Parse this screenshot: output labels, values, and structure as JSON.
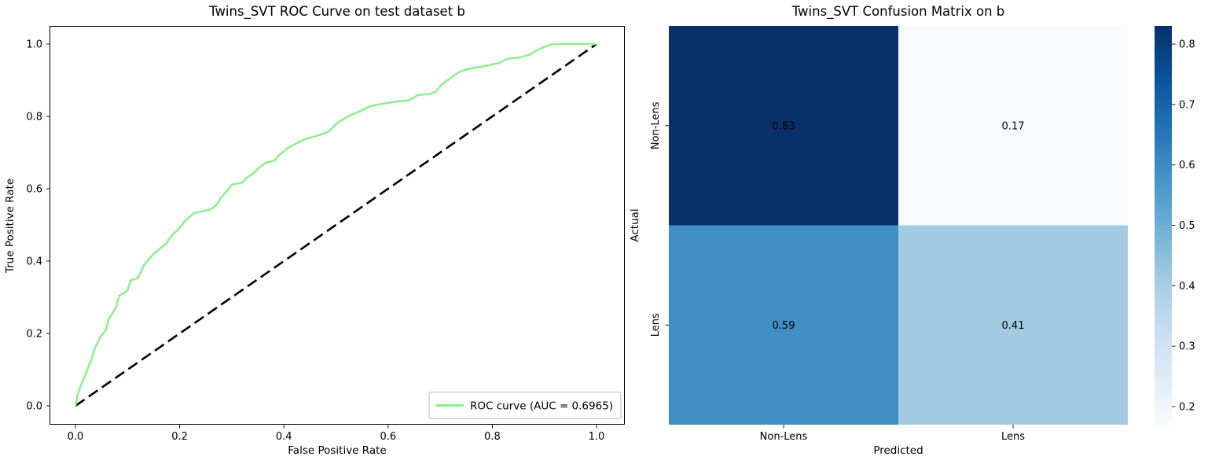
{
  "figure_background": "#ffffff",
  "chart_data": [
    {
      "type": "line",
      "title": "Twins_SVT ROC Curve on test dataset b",
      "xlabel": "False Positive Rate",
      "ylabel": "True Positive Rate",
      "xticks": [
        "0.0",
        "0.2",
        "0.4",
        "0.6",
        "0.8",
        "1.0"
      ],
      "yticks": [
        "0.0",
        "0.2",
        "0.4",
        "0.6",
        "0.8",
        "1.0"
      ],
      "xlim": [
        -0.05,
        1.05
      ],
      "ylim": [
        -0.05,
        1.05
      ],
      "grid": false,
      "legend_position": "lower right",
      "auc": 0.6965,
      "series": [
        {
          "name": "ROC curve (AUC = 0.6965)",
          "color": "#90ee90",
          "style": "solid",
          "in_legend": true,
          "points": [
            [
              0.0,
              0.0
            ],
            [
              0.004,
              0.03
            ],
            [
              0.01,
              0.055
            ],
            [
              0.02,
              0.09
            ],
            [
              0.03,
              0.126
            ],
            [
              0.037,
              0.158
            ],
            [
              0.048,
              0.191
            ],
            [
              0.058,
              0.208
            ],
            [
              0.064,
              0.24
            ],
            [
              0.078,
              0.272
            ],
            [
              0.084,
              0.304
            ],
            [
              0.1,
              0.319
            ],
            [
              0.106,
              0.347
            ],
            [
              0.12,
              0.353
            ],
            [
              0.132,
              0.39
            ],
            [
              0.15,
              0.42
            ],
            [
              0.174,
              0.448
            ],
            [
              0.186,
              0.473
            ],
            [
              0.196,
              0.485
            ],
            [
              0.211,
              0.512
            ],
            [
              0.228,
              0.533
            ],
            [
              0.245,
              0.538
            ],
            [
              0.258,
              0.542
            ],
            [
              0.271,
              0.555
            ],
            [
              0.28,
              0.576
            ],
            [
              0.301,
              0.612
            ],
            [
              0.32,
              0.617
            ],
            [
              0.33,
              0.632
            ],
            [
              0.34,
              0.64
            ],
            [
              0.35,
              0.655
            ],
            [
              0.365,
              0.672
            ],
            [
              0.382,
              0.678
            ],
            [
              0.392,
              0.694
            ],
            [
              0.41,
              0.715
            ],
            [
              0.425,
              0.726
            ],
            [
              0.44,
              0.737
            ],
            [
              0.465,
              0.747
            ],
            [
              0.485,
              0.757
            ],
            [
              0.504,
              0.784
            ],
            [
              0.525,
              0.801
            ],
            [
              0.549,
              0.816
            ],
            [
              0.565,
              0.828
            ],
            [
              0.585,
              0.834
            ],
            [
              0.62,
              0.842
            ],
            [
              0.64,
              0.844
            ],
            [
              0.657,
              0.859
            ],
            [
              0.68,
              0.862
            ],
            [
              0.692,
              0.869
            ],
            [
              0.702,
              0.887
            ],
            [
              0.72,
              0.906
            ],
            [
              0.732,
              0.919
            ],
            [
              0.744,
              0.927
            ],
            [
              0.76,
              0.933
            ],
            [
              0.785,
              0.939
            ],
            [
              0.814,
              0.948
            ],
            [
              0.83,
              0.96
            ],
            [
              0.85,
              0.962
            ],
            [
              0.87,
              0.97
            ],
            [
              0.892,
              0.987
            ],
            [
              0.91,
              0.998
            ],
            [
              0.924,
              1.0
            ],
            [
              1.0,
              1.0
            ]
          ]
        },
        {
          "name": "chance diagonal",
          "color": "#000000",
          "style": "dashed",
          "in_legend": false,
          "points": [
            [
              0,
              0
            ],
            [
              1,
              1
            ]
          ]
        }
      ]
    },
    {
      "type": "heatmap",
      "title": "Twins_SVT Confusion Matrix on b",
      "xlabel": "Predicted",
      "ylabel": "Actual",
      "x_categories": [
        "Non-Lens",
        "Lens"
      ],
      "y_categories": [
        "Non-Lens",
        "Lens"
      ],
      "values": [
        [
          0.83,
          0.17
        ],
        [
          0.59,
          0.41
        ]
      ],
      "cell_colors": [
        [
          "#08306b",
          "#f7fbff"
        ],
        [
          "#3f8fc4",
          "#a2cbe2"
        ]
      ],
      "cell_text_colors": [
        [
          "#ffffff",
          "#262626"
        ],
        [
          "#ffffff",
          "#262626"
        ]
      ],
      "colormap": "Blues",
      "colorbar": {
        "vmin": 0.17,
        "vmax": 0.83,
        "ticks": [
          "0.2",
          "0.3",
          "0.4",
          "0.5",
          "0.6",
          "0.7",
          "0.8"
        ],
        "gradient_stops_top_to_bottom": [
          "#08306b",
          "#08519c",
          "#2171b5",
          "#4292c6",
          "#6baed6",
          "#9ecae1",
          "#c6dbef",
          "#deebf7",
          "#f7fbff"
        ]
      }
    }
  ]
}
